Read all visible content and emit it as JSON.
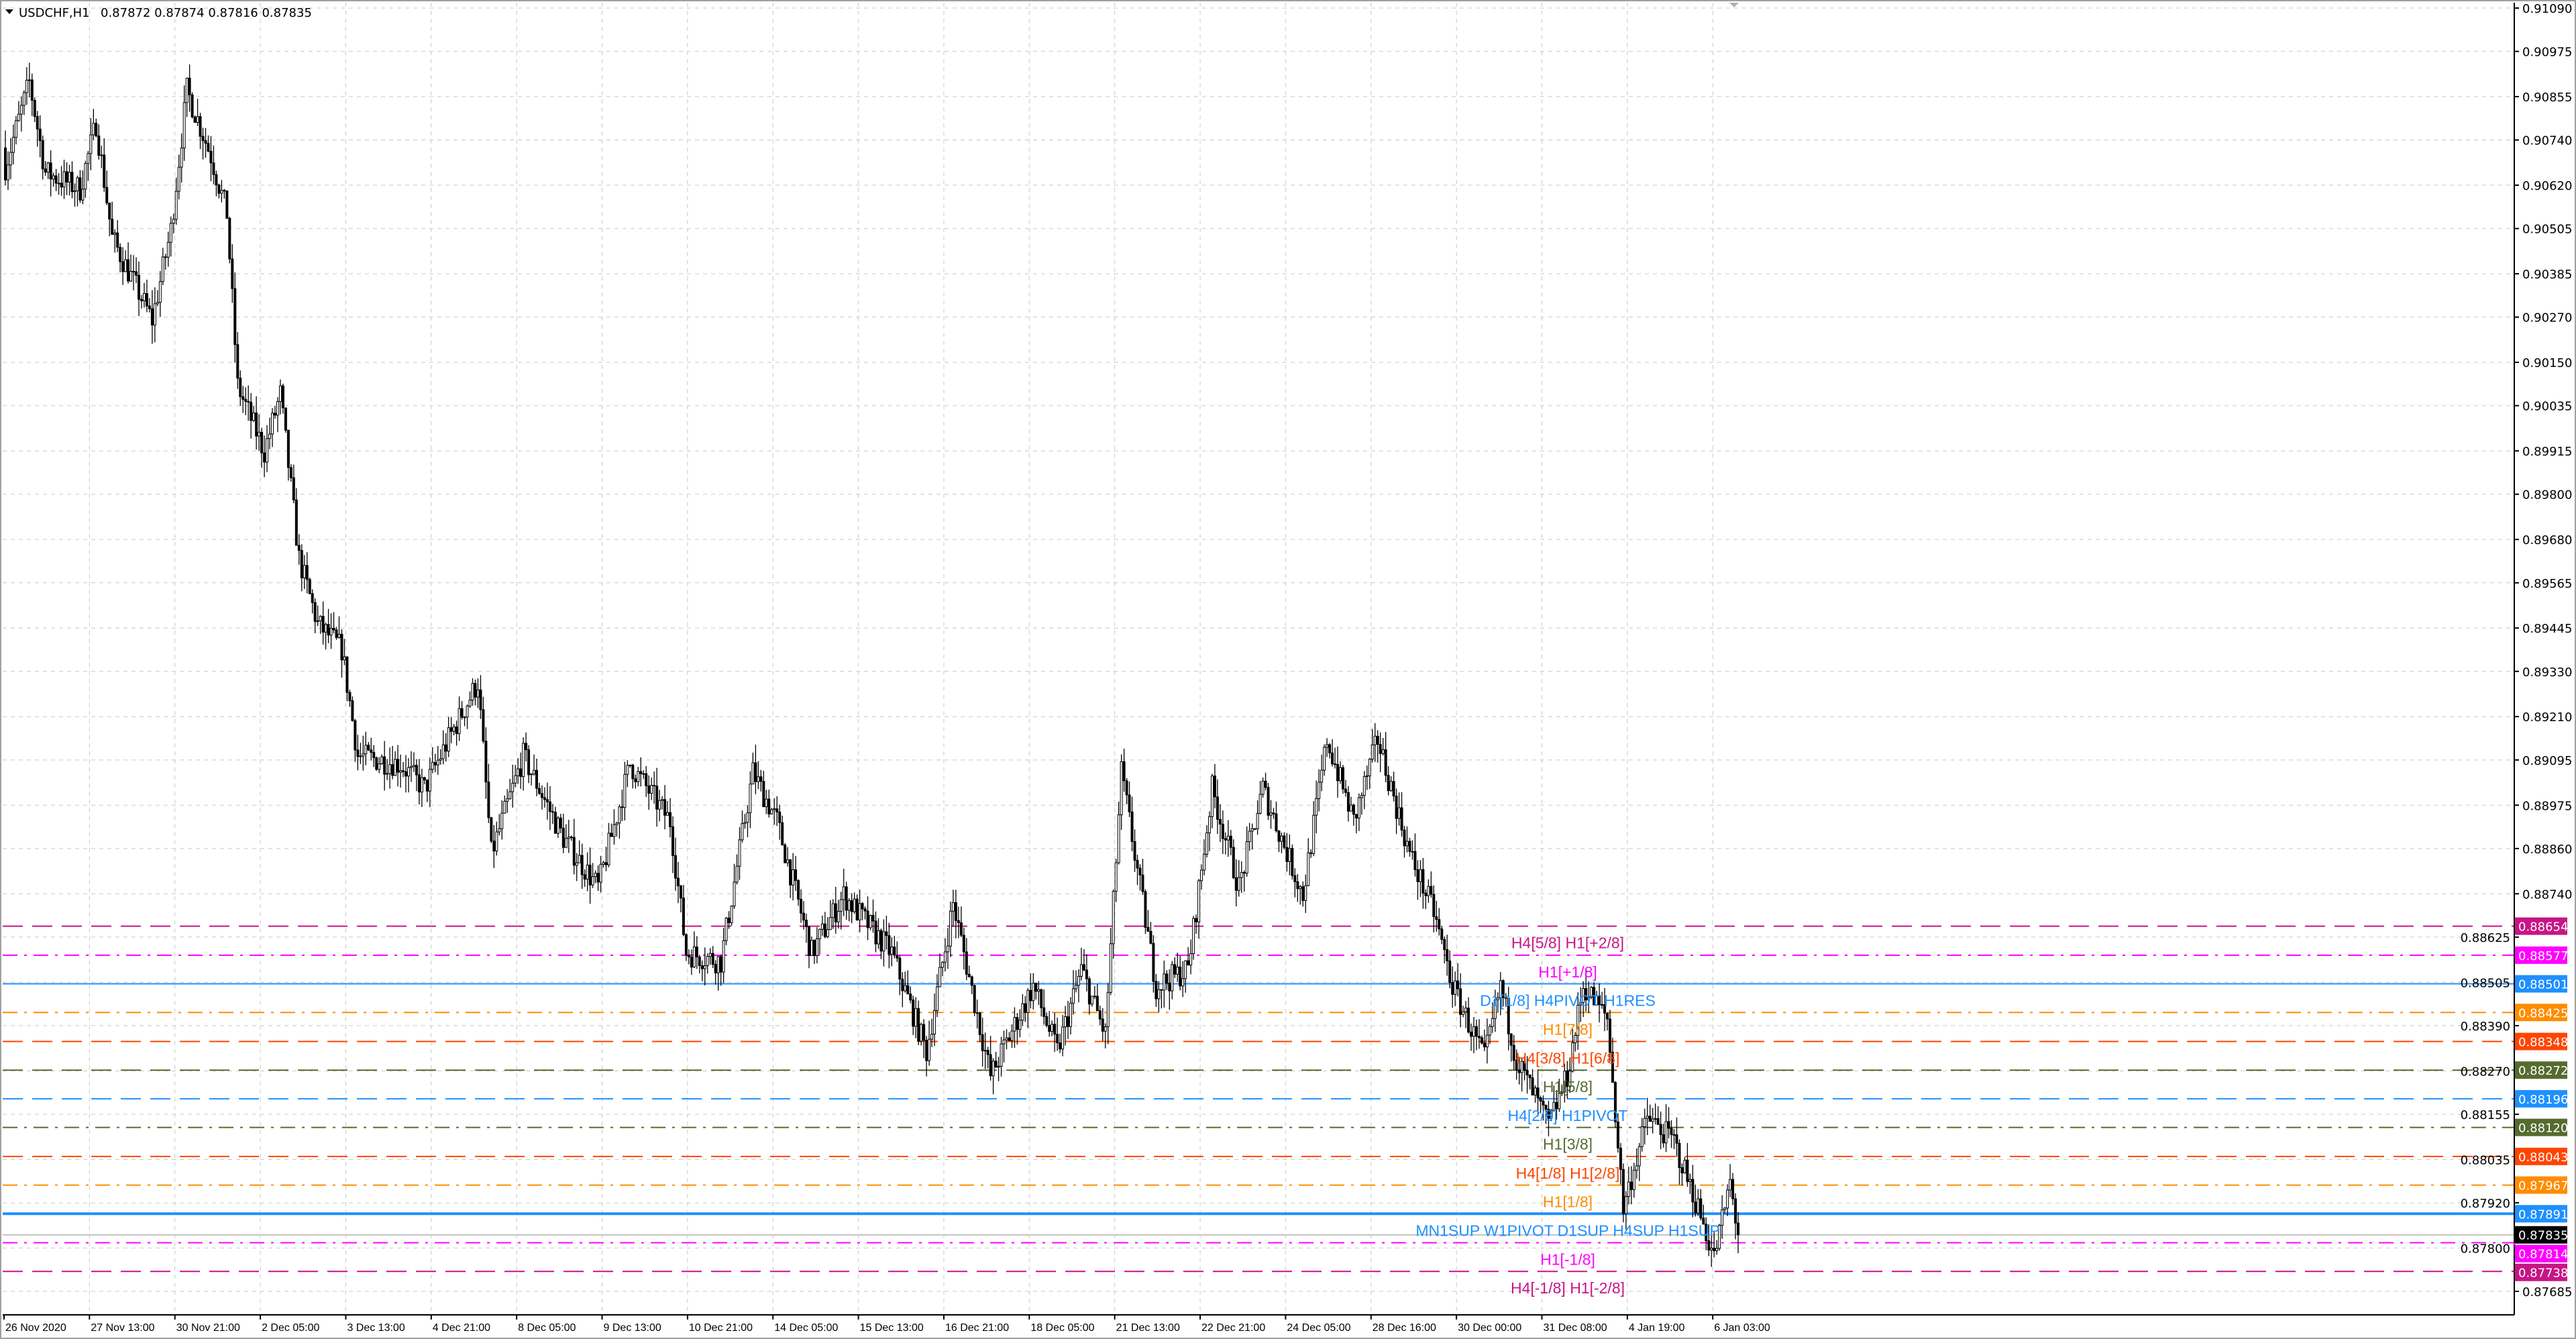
{
  "header": {
    "symbol_timeframe": "USDCHF,H1",
    "ohlc": "0.87872 0.87874 0.87816 0.87835",
    "menu_icon": "triangle-down-icon"
  },
  "chart_data": {
    "type": "candlestick",
    "symbol": "USDCHF",
    "timeframe": "H1",
    "ylim": [
      0.876,
      0.911
    ],
    "grid": true,
    "y_ticks": [
      "0.91090",
      "0.90975",
      "0.90855",
      "0.90740",
      "0.90620",
      "0.90505",
      "0.90385",
      "0.90270",
      "0.90150",
      "0.90035",
      "0.89915",
      "0.89800",
      "0.89680",
      "0.89565",
      "0.89445",
      "0.89330",
      "0.89210",
      "0.89095",
      "0.88975",
      "0.88860",
      "0.88740",
      "0.88625",
      "0.88505",
      "0.88390",
      "0.88270",
      "0.88155",
      "0.88035",
      "0.87920",
      "0.87800",
      "0.87685"
    ],
    "x_ticks": [
      "26 Nov 2020",
      "27 Nov 13:00",
      "30 Nov 21:00",
      "2 Dec 05:00",
      "3 Dec 13:00",
      "4 Dec 21:00",
      "8 Dec 05:00",
      "9 Dec 13:00",
      "10 Dec 21:00",
      "14 Dec 05:00",
      "15 Dec 13:00",
      "16 Dec 21:00",
      "18 Dec 05:00",
      "21 Dec 13:00",
      "22 Dec 21:00",
      "24 Dec 05:00",
      "28 Dec 16:00",
      "30 Dec 00:00",
      "31 Dec 08:00",
      "4 Jan 19:00",
      "6 Jan 03:00"
    ],
    "bars_per_x_tick": 32,
    "price_path": [
      [
        2,
        0.90719
      ],
      [
        9,
        0.90894
      ],
      [
        15,
        0.90654
      ],
      [
        28,
        0.9061
      ],
      [
        34,
        0.90785
      ],
      [
        40,
        0.9048
      ],
      [
        55,
        0.90262
      ],
      [
        62,
        0.90501
      ],
      [
        68,
        0.90872
      ],
      [
        77,
        0.90698
      ],
      [
        83,
        0.90545
      ],
      [
        87,
        0.90087
      ],
      [
        97,
        0.89913
      ],
      [
        103,
        0.90065
      ],
      [
        110,
        0.89629
      ],
      [
        117,
        0.89455
      ],
      [
        126,
        0.8939
      ],
      [
        132,
        0.89106
      ],
      [
        148,
        0.89084
      ],
      [
        157,
        0.89019
      ],
      [
        166,
        0.8915
      ],
      [
        177,
        0.89302
      ],
      [
        182,
        0.88845
      ],
      [
        194,
        0.89106
      ],
      [
        209,
        0.88888
      ],
      [
        222,
        0.88757
      ],
      [
        234,
        0.89084
      ],
      [
        249,
        0.88932
      ],
      [
        255,
        0.88583
      ],
      [
        268,
        0.88561
      ],
      [
        280,
        0.89063
      ],
      [
        289,
        0.88932
      ],
      [
        302,
        0.88583
      ],
      [
        314,
        0.88736
      ],
      [
        332,
        0.88583
      ],
      [
        345,
        0.88321
      ],
      [
        355,
        0.88714
      ],
      [
        369,
        0.88256
      ],
      [
        385,
        0.88496
      ],
      [
        394,
        0.88321
      ],
      [
        403,
        0.88539
      ],
      [
        412,
        0.88365
      ],
      [
        418,
        0.89063
      ],
      [
        431,
        0.88496
      ],
      [
        443,
        0.88539
      ],
      [
        452,
        0.89019
      ],
      [
        462,
        0.88757
      ],
      [
        471,
        0.89019
      ],
      [
        486,
        0.88736
      ],
      [
        495,
        0.8915
      ],
      [
        505,
        0.88932
      ],
      [
        514,
        0.8915
      ],
      [
        526,
        0.88845
      ],
      [
        535,
        0.88692
      ],
      [
        542,
        0.88496
      ],
      [
        554,
        0.883
      ],
      [
        560,
        0.88496
      ],
      [
        566,
        0.883
      ],
      [
        578,
        0.88125
      ],
      [
        585,
        0.88256
      ],
      [
        591,
        0.88496
      ],
      [
        600,
        0.88409
      ],
      [
        606,
        0.87907
      ],
      [
        615,
        0.88147
      ],
      [
        625,
        0.88082
      ],
      [
        634,
        0.87907
      ],
      [
        640,
        0.87776
      ],
      [
        646,
        0.87973
      ],
      [
        649,
        0.87835
      ]
    ],
    "current_price": {
      "value": 0.87835,
      "label": "0.87835",
      "color": "#000000"
    },
    "levels": [
      {
        "price": 0.88654,
        "label": "0.88654",
        "text": "H4[5/8] H1[+2/8]",
        "color": "#c71585",
        "style": "dash"
      },
      {
        "price": 0.88577,
        "label": "0.88577",
        "text": "H1[+1/8]",
        "color": "#ff00ff",
        "style": "dashdot"
      },
      {
        "price": 0.88501,
        "label": "0.88501",
        "text": "D1[1/8] H4PIVOT H1RES",
        "color": "#1e90ff",
        "style": "solid"
      },
      {
        "price": 0.88425,
        "label": "0.88425",
        "text": "H1[7/8]",
        "color": "#ff8c00",
        "style": "dashdot"
      },
      {
        "price": 0.88348,
        "label": "0.88348",
        "text": "H4[3/8] H1[6/8]",
        "color": "#ff4500",
        "style": "dash"
      },
      {
        "price": 0.88272,
        "label": "0.88272",
        "text": "H1[5/8]",
        "color": "#556b2f",
        "style": "dash"
      },
      {
        "price": 0.88196,
        "label": "0.88196",
        "text": "H4[2/8] H1PIVOT",
        "color": "#1e90ff",
        "style": "dash"
      },
      {
        "price": 0.8812,
        "label": "0.88120",
        "text": "H1[3/8]",
        "color": "#556b2f",
        "style": "dashdot"
      },
      {
        "price": 0.88043,
        "label": "0.88043",
        "text": "H4[1/8] H1[2/8]",
        "color": "#ff4500",
        "style": "dash"
      },
      {
        "price": 0.87967,
        "label": "0.87967",
        "text": "H1[1/8]",
        "color": "#ff8c00",
        "style": "dashdot"
      },
      {
        "price": 0.87891,
        "label": "0.87891",
        "text": "MN1SUP W1PIVOT D1SUP H4SUP H1SUP",
        "color": "#1e90ff",
        "style": "solid-thick"
      },
      {
        "price": 0.87814,
        "label": "0.87814",
        "text": "H1[-1/8]",
        "color": "#ff00ff",
        "style": "dashdot"
      },
      {
        "price": 0.87738,
        "label": "0.87738",
        "text": "H4[-1/8] H1[-2/8]",
        "color": "#c71585",
        "style": "dash"
      }
    ]
  }
}
